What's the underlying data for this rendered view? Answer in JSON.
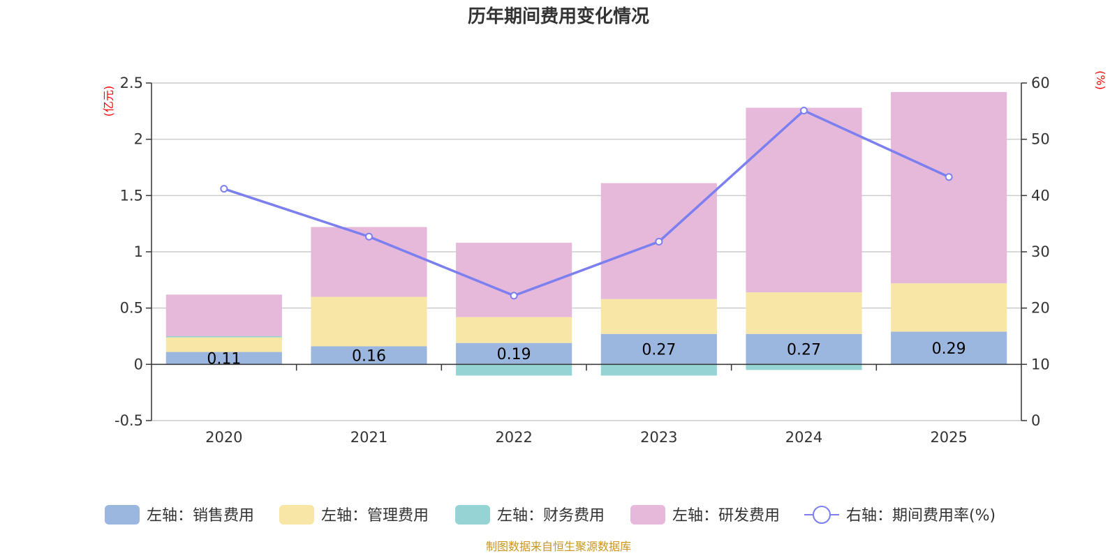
{
  "chart_data": {
    "type": "bar",
    "stacked": true,
    "title": "历年期间费用变化情况",
    "categories": [
      "2020",
      "2021",
      "2022",
      "2023",
      "2024",
      "2025"
    ],
    "left_axis": {
      "unit_label": "(亿元)",
      "ylim": [
        -0.5,
        2.5
      ],
      "ticks": [
        -0.5,
        0,
        0.5,
        1,
        1.5,
        2,
        2.5
      ],
      "tick_labels": [
        "-0.5",
        "0",
        "0.5",
        "1",
        "1.5",
        "2",
        "2.5"
      ]
    },
    "right_axis": {
      "unit_label": "(%)",
      "ylim": [
        0,
        60
      ],
      "ticks": [
        0,
        10,
        20,
        30,
        40,
        50,
        60
      ],
      "tick_labels": [
        "0",
        "10",
        "20",
        "30",
        "40",
        "50",
        "60"
      ]
    },
    "series": [
      {
        "name": "左轴：销售费用",
        "axis": "left",
        "color": "#9bb7e0",
        "values": [
          0.11,
          0.16,
          0.19,
          0.27,
          0.27,
          0.29
        ],
        "labels": [
          "0.11",
          "0.16",
          "0.19",
          "0.27",
          "0.27",
          "0.29"
        ]
      },
      {
        "name": "左轴：管理费用",
        "axis": "left",
        "color": "#f7e6a6",
        "values": [
          0.13,
          0.44,
          0.23,
          0.31,
          0.37,
          0.43
        ]
      },
      {
        "name": "左轴：财务费用",
        "axis": "left",
        "color": "#94d4d4",
        "values": [
          0.01,
          0.0,
          -0.1,
          -0.1,
          -0.05,
          0.0
        ]
      },
      {
        "name": "左轴：研发费用",
        "axis": "left",
        "color": "#e6b8da",
        "values": [
          0.37,
          0.62,
          0.66,
          1.03,
          1.64,
          1.7
        ]
      },
      {
        "name": "右轴：期间费用率(%)",
        "axis": "right",
        "type": "line",
        "color": "#7b7ff0",
        "values": [
          41.2,
          32.7,
          22.2,
          31.8,
          55.1,
          43.3
        ]
      }
    ],
    "source": "制图数据来自恒生聚源数据库"
  }
}
